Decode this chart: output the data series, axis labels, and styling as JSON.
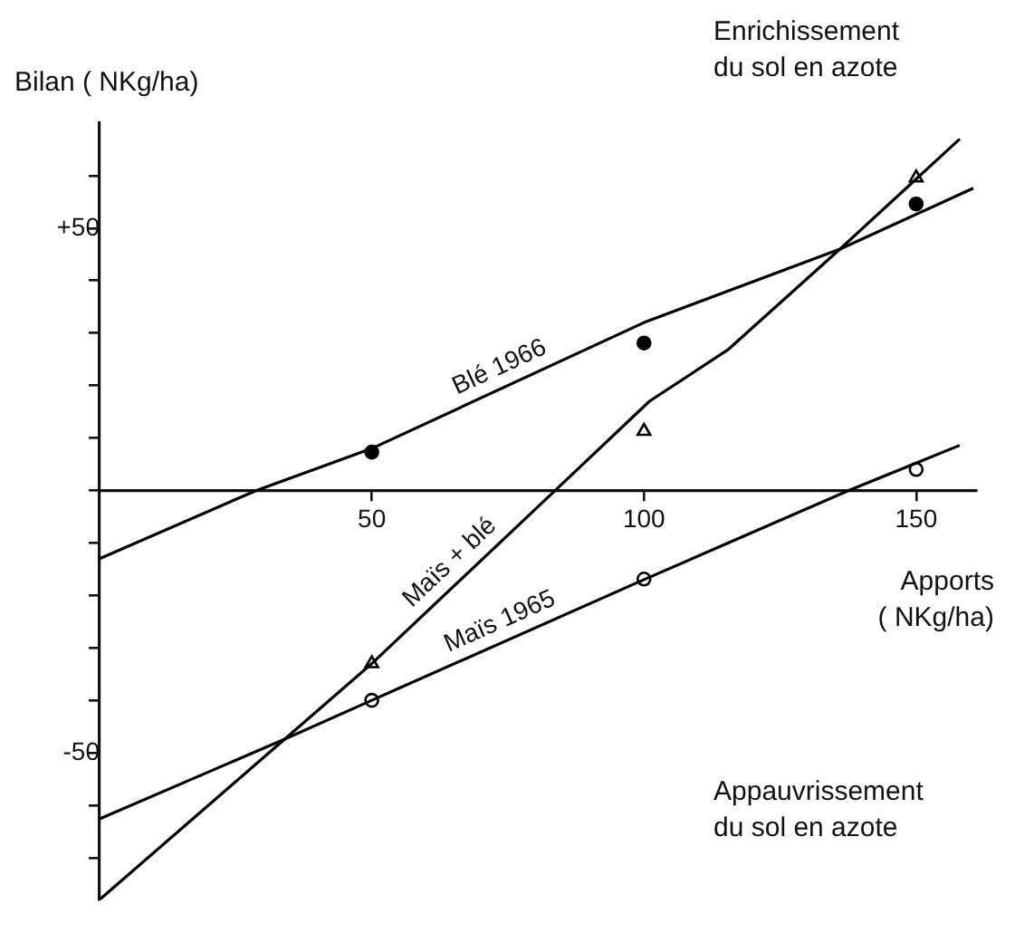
{
  "chart_data": {
    "type": "line",
    "xlabel": "Apports\n( NKg/ha)",
    "ylabel": "Bilan ( NKg/ha)",
    "annotations": [
      "Enrichissement\ndu sol en azote",
      "Appauvrissement\ndu sol en azote"
    ],
    "xlim": [
      0,
      161
    ],
    "xticks": [
      50,
      100,
      150
    ],
    "ylim": [
      -78,
      70
    ],
    "yticks": [
      {
        "value": -70,
        "label": null
      },
      {
        "value": -60,
        "label": null
      },
      {
        "value": -50,
        "label": "-50"
      },
      {
        "value": -40,
        "label": null
      },
      {
        "value": -30,
        "label": null
      },
      {
        "value": -20,
        "label": null
      },
      {
        "value": -10,
        "label": null
      },
      {
        "value": 0,
        "label": null
      },
      {
        "value": 10,
        "label": null
      },
      {
        "value": 20,
        "label": null
      },
      {
        "value": 30,
        "label": null
      },
      {
        "value": 40,
        "label": null
      },
      {
        "value": 50,
        "label": "+50"
      },
      {
        "value": 60,
        "label": null
      }
    ],
    "grid": false,
    "legend": false,
    "series": [
      {
        "name": "Blé 1966",
        "type": "line",
        "color": "#000000",
        "marker": "none",
        "x": [
          0,
          28.8,
          50,
          100,
          136,
          160.5
        ],
        "values": [
          -13,
          0,
          8,
          32,
          46,
          57.6
        ]
      },
      {
        "name": "Maïs + blé",
        "type": "line",
        "color": "#000000",
        "marker": "none",
        "x": [
          0,
          34,
          50,
          83.7,
          101,
          115.4,
          136,
          158
        ],
        "values": [
          -78,
          -47.4,
          -33,
          0,
          17,
          26.8,
          46,
          67
        ]
      },
      {
        "name": "Maïs 1965",
        "type": "line",
        "color": "#000000",
        "marker": "none",
        "x": [
          0,
          34,
          50,
          100,
          137.6,
          158
        ],
        "values": [
          -62.6,
          -47.4,
          -40,
          -17,
          0,
          8.6
        ]
      },
      {
        "type": "scatter",
        "color": "#000000",
        "marker": "circle",
        "x": [
          50,
          100,
          150
        ],
        "values": [
          7.3,
          28.1,
          54.6
        ]
      },
      {
        "type": "scatter",
        "color": "#000000",
        "marker": "triangle",
        "x": [
          50,
          100,
          150
        ],
        "values": [
          -33,
          11.3,
          59.6
        ]
      },
      {
        "type": "scatter",
        "color": "#000000",
        "marker": "circle",
        "x": [
          50,
          100,
          150
        ],
        "values": [
          -40,
          -16.9,
          4
        ]
      }
    ]
  }
}
